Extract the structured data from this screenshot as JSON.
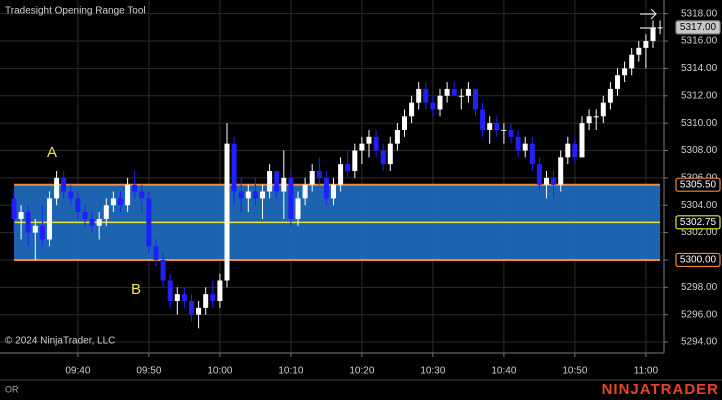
{
  "chart_data": {
    "type": "candlestick",
    "title": "Tradesight Opening Range Tool",
    "copyright": "© 2024 NinjaTrader, LLC",
    "indicator_label": "OR",
    "brand": "NINJATRADER",
    "annotations": [
      "A",
      "B"
    ],
    "categories": [
      null,
      null,
      null,
      null,
      null,
      null,
      null,
      null,
      null,
      "09:40",
      null,
      null,
      null,
      null,
      null,
      null,
      null,
      null,
      null,
      "09:50",
      null,
      null,
      null,
      null,
      null,
      null,
      null,
      null,
      null,
      "10:00",
      null,
      null,
      null,
      null,
      null,
      null,
      null,
      null,
      null,
      "10:10",
      null,
      null,
      null,
      null,
      null,
      null,
      null,
      null,
      null,
      "10:20",
      null,
      null,
      null,
      null,
      null,
      null,
      null,
      null,
      null,
      "10:30",
      null,
      null,
      null,
      null,
      null,
      null,
      null,
      null,
      null,
      "10:40",
      null,
      null,
      null,
      null,
      null,
      null,
      null,
      null,
      null,
      "10:50",
      null,
      null,
      null,
      null,
      null,
      null,
      null,
      null,
      null,
      "11:00",
      null,
      null
    ],
    "open": [
      5304.5,
      5303,
      5303.5,
      5302,
      5302.5,
      5301.5,
      5304.5,
      5306,
      5305,
      5304.5,
      5303.5,
      5303,
      5302.5,
      5303,
      5304,
      5304.5,
      5304,
      5305.5,
      5305,
      5304.5,
      5301,
      5300,
      5298.5,
      5297,
      5297.5,
      5297,
      5296,
      5296.5,
      5297.5,
      5297,
      5298.5,
      5308.5,
      5305,
      5304.5,
      5305,
      5304.5,
      5305,
      5306.5,
      5305,
      5306,
      5303,
      5304.5,
      5305.5,
      5306.5,
      5306,
      5304.5,
      5305.5,
      5307,
      5306.5,
      5308,
      5308.5,
      5309,
      5308,
      5307,
      5308.5,
      5309.5,
      5310.5,
      5311.5,
      5312.5,
      5311.5,
      5311,
      5312,
      5312.5,
      5312,
      5312,
      5312.5,
      5311,
      5309.5,
      5310,
      5309.5,
      5309.5,
      5309,
      5308,
      5308.5,
      5307,
      5305.5,
      5306,
      5305.5,
      5307.5,
      5308.5,
      5307.5,
      5310,
      5310.5,
      5310.5,
      5311.5,
      5312.5,
      5313.5,
      5314,
      5315,
      5315.5,
      5316,
      5317
    ],
    "high": [
      5305,
      5304,
      5304,
      5303,
      5304,
      5305,
      5306.5,
      5306.5,
      5305.5,
      5305,
      5304,
      5303.5,
      5303.5,
      5304.5,
      5305,
      5305,
      5306,
      5306.5,
      5305.5,
      5305,
      5301.5,
      5300.5,
      5299,
      5298,
      5298,
      5297.5,
      5297,
      5298,
      5298.5,
      5299,
      5310,
      5309,
      5306,
      5305.5,
      5306,
      5305.5,
      5307,
      5306.5,
      5308,
      5306.5,
      5305,
      5306,
      5307,
      5307.5,
      5306.5,
      5306,
      5307.5,
      5308,
      5308.5,
      5309,
      5309.5,
      5309.5,
      5308.5,
      5309,
      5310,
      5311,
      5312,
      5313,
      5313,
      5312,
      5312.5,
      5313,
      5313,
      5312.5,
      5313,
      5312.5,
      5311.5,
      5310.5,
      5310.5,
      5310,
      5310,
      5309.5,
      5309,
      5309,
      5307.5,
      5306.5,
      5306.5,
      5308,
      5309,
      5309,
      5310.5,
      5311,
      5311,
      5312,
      5313,
      5314,
      5314.5,
      5315.5,
      5316,
      5316.5,
      5317.5,
      5317.5
    ],
    "low": [
      5302,
      5301.5,
      5301,
      5300,
      5301,
      5301,
      5304,
      5304.5,
      5304,
      5303,
      5302.5,
      5302,
      5301.5,
      5302.5,
      5303.5,
      5303.5,
      5303.5,
      5304.5,
      5303.5,
      5300.5,
      5299.5,
      5298,
      5296.5,
      5296,
      5296.5,
      5295.5,
      5295,
      5296,
      5296.5,
      5296.5,
      5298,
      5304,
      5303.5,
      5303.5,
      5304,
      5303,
      5304.5,
      5304.5,
      5303,
      5302.5,
      5302.5,
      5304,
      5305,
      5305.5,
      5304,
      5304,
      5305,
      5306,
      5306,
      5307,
      5307.5,
      5307.5,
      5306.5,
      5306.5,
      5308,
      5309,
      5310,
      5311,
      5311,
      5310.5,
      5310.5,
      5311.5,
      5312,
      5311,
      5311.5,
      5310.5,
      5309,
      5308.5,
      5309,
      5308.5,
      5308.5,
      5307.5,
      5307.5,
      5306.5,
      5305,
      5304.5,
      5304.5,
      5305,
      5307,
      5307,
      5307.5,
      5309.5,
      5309.5,
      5310,
      5311,
      5312,
      5313,
      5313.5,
      5314.5,
      5314,
      5315.5,
      5316.5
    ],
    "close": [
      5303,
      5303.5,
      5302,
      5302.5,
      5301.5,
      5304.5,
      5306,
      5305,
      5304.5,
      5303.5,
      5303,
      5302.5,
      5303,
      5304,
      5304.5,
      5304,
      5305.5,
      5305,
      5304.5,
      5301,
      5300,
      5298.5,
      5297,
      5297.5,
      5297,
      5296,
      5296.5,
      5297.5,
      5297,
      5298.5,
      5308.5,
      5305,
      5304.5,
      5305,
      5304.5,
      5305,
      5306.5,
      5305,
      5306,
      5303,
      5304.5,
      5305.5,
      5306.5,
      5306,
      5304.5,
      5305.5,
      5307,
      5306.5,
      5308,
      5308.5,
      5309,
      5308,
      5307,
      5308.5,
      5309.5,
      5310.5,
      5311.5,
      5312.5,
      5311.5,
      5311,
      5312,
      5312.5,
      5312,
      5312,
      5312.5,
      5311,
      5309.5,
      5310,
      5309.5,
      5309.5,
      5309,
      5308,
      5308.5,
      5307,
      5305.5,
      5306,
      5305.5,
      5307.5,
      5308.5,
      5307.5,
      5310,
      5310.5,
      5310.5,
      5311.5,
      5312.5,
      5313.5,
      5314,
      5315,
      5315.5,
      5316,
      5317,
      5317
    ],
    "up_color": "#ffffff",
    "down_color": "#1f1fff",
    "ylim": [
      5293.2,
      5319.0
    ],
    "yticks": [
      {
        "value": 5294,
        "label": "5294.00"
      },
      {
        "value": 5296,
        "label": "5296.00"
      },
      {
        "value": 5298,
        "label": "5298.00"
      },
      {
        "value": 5300,
        "label": "5300.00"
      },
      {
        "value": 5302,
        "label": "5302.00"
      },
      {
        "value": 5304,
        "label": "5304.00"
      },
      {
        "value": 5306,
        "label": "5306.00"
      },
      {
        "value": 5308,
        "label": "5308.00"
      },
      {
        "value": 5310,
        "label": "5310.00"
      },
      {
        "value": 5312,
        "label": "5312.00"
      },
      {
        "value": 5314,
        "label": "5314.00"
      },
      {
        "value": 5316,
        "label": "5316.00"
      },
      {
        "value": 5318,
        "label": "5318.00"
      }
    ],
    "grid": true,
    "opening_range": {
      "high": {
        "value": 5305.5,
        "label": "5305.50"
      },
      "mid": {
        "value": 5302.75,
        "label": "5302.75"
      },
      "low": {
        "value": 5300,
        "label": "5300.00"
      },
      "fill_color": "#1e6dbf",
      "edge_color": "#f08a3c",
      "mid_color": "#e6e63c"
    },
    "last_price": {
      "value": 5317,
      "label": "5317.00"
    }
  }
}
